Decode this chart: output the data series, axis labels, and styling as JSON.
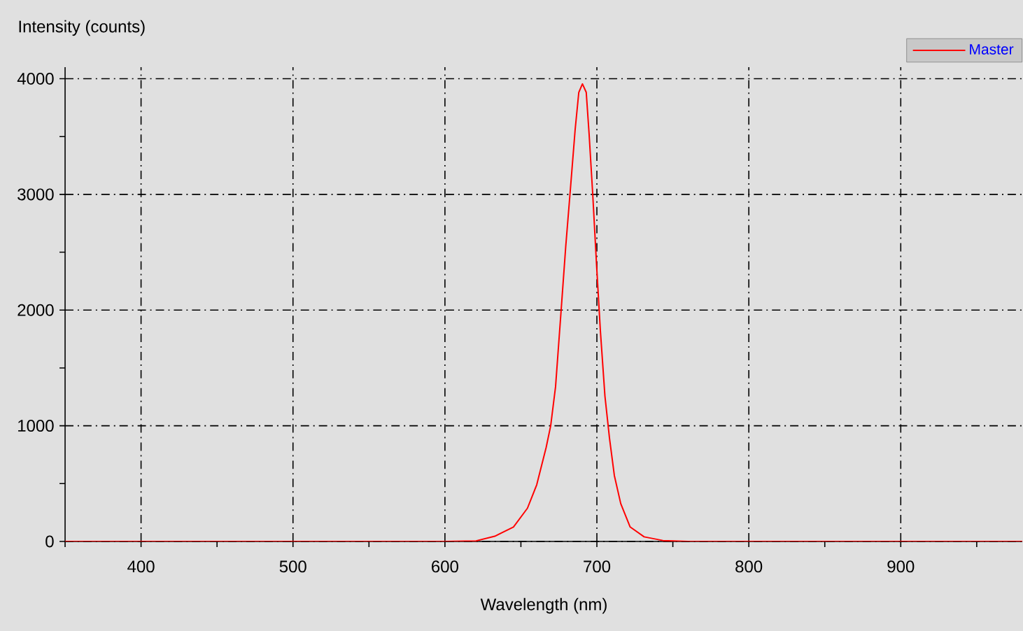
{
  "chart_data": {
    "type": "line",
    "xlabel": "Wavelength (nm)",
    "ylabel": "Intensity (counts)",
    "x": [
      350,
      600,
      620.5,
      632.8,
      645.1,
      654.3,
      660.4,
      666.6,
      669.6,
      672.8,
      676.4,
      679.5,
      682.5,
      685.7,
      688.1,
      690.5,
      693.0,
      694.9,
      697.3,
      699.8,
      702.3,
      705.3,
      708.3,
      711.5,
      715.7,
      721.9,
      731.1,
      743.4,
      760,
      980
    ],
    "series": [
      {
        "name": "Master",
        "color": "#ff0000",
        "values": [
          0,
          0,
          5,
          45,
          125,
          287,
          489,
          812,
          1000,
          1337,
          1984,
          2549,
          3034,
          3560,
          3882,
          3955,
          3882,
          3519,
          2994,
          2388,
          1822,
          1257,
          893,
          570,
          327,
          125,
          40,
          8,
          0,
          0
        ]
      }
    ],
    "xlim": [
      350,
      980
    ],
    "ylim": [
      0,
      4100
    ],
    "xticks": [
      {
        "value": 350,
        "label": null
      },
      400,
      {
        "value": 450,
        "label": null
      },
      500,
      {
        "value": 550,
        "label": null
      },
      600,
      {
        "value": 650,
        "label": null
      },
      700,
      {
        "value": 750,
        "label": null
      },
      800,
      {
        "value": 850,
        "label": null
      },
      900,
      {
        "value": 950,
        "label": null
      }
    ],
    "yticks": [
      0,
      {
        "value": 500,
        "label": null
      },
      1000,
      {
        "value": 1500,
        "label": null
      },
      2000,
      {
        "value": 2500,
        "label": null
      },
      3000,
      {
        "value": 3500,
        "label": null
      },
      4000
    ],
    "grid": true,
    "legend": "top right",
    "marker": "none",
    "line_style": "solid"
  }
}
